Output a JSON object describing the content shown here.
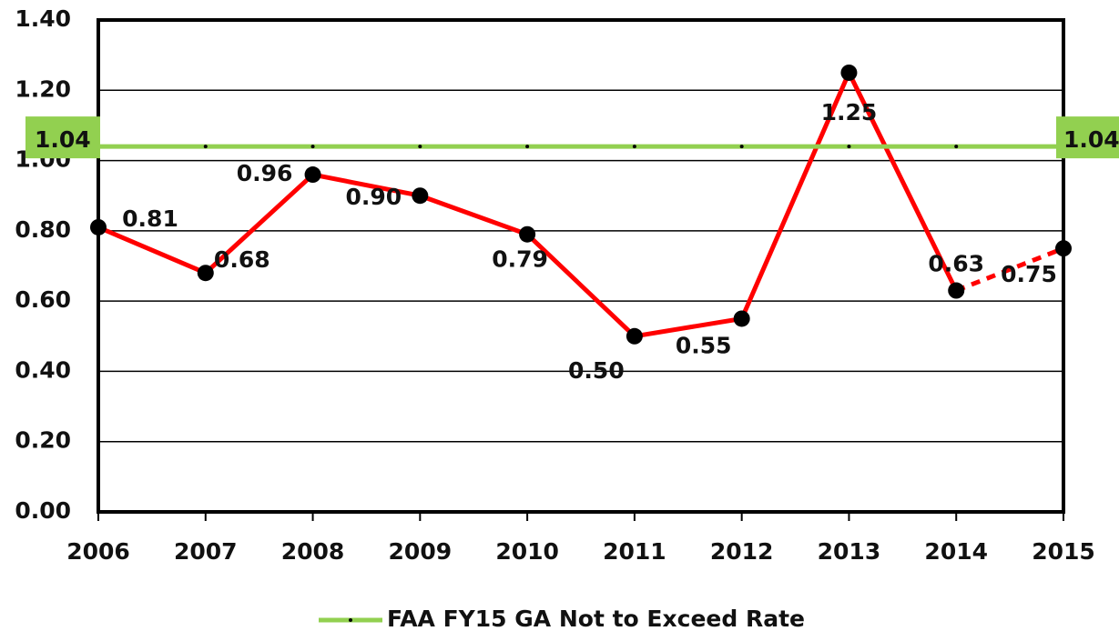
{
  "chart_data": {
    "type": "line",
    "categories": [
      "2006",
      "2007",
      "2008",
      "2009",
      "2010",
      "2011",
      "2012",
      "2013",
      "2014",
      "2015"
    ],
    "series": [
      {
        "color": "#ff0000",
        "values": [
          0.81,
          0.68,
          0.96,
          0.9,
          0.79,
          0.5,
          0.55,
          1.25,
          0.63,
          0.75
        ],
        "value_labels": [
          "0.81",
          "0.68",
          "0.96",
          "0.90",
          "0.79",
          "0.50",
          "0.55",
          "1.25",
          "0.63",
          "0.75"
        ],
        "last_segment_style": "dashed"
      },
      {
        "name": "FAA FY15 GA Not to Exceed Rate",
        "color": "#92d050",
        "values": [
          1.04,
          1.04,
          1.04,
          1.04,
          1.04,
          1.04,
          1.04,
          1.04,
          1.04,
          1.04
        ],
        "value_labels": [
          "1.04",
          null,
          null,
          null,
          null,
          null,
          null,
          null,
          null,
          "1.04"
        ]
      }
    ],
    "ylim": [
      0,
      1.4
    ],
    "yticks": [
      {
        "value": 0,
        "label": "0.00"
      },
      {
        "value": 0.2,
        "label": "0.20"
      },
      {
        "value": 0.4,
        "label": "0.40"
      },
      {
        "value": 0.6,
        "label": "0.60"
      },
      {
        "value": 0.8,
        "label": "0.80"
      },
      {
        "value": 1.0,
        "label": "1.00"
      },
      {
        "value": 1.2,
        "label": "1.20"
      },
      {
        "value": 1.4,
        "label": "1.40"
      }
    ],
    "grid": true,
    "legend": "bottom"
  }
}
